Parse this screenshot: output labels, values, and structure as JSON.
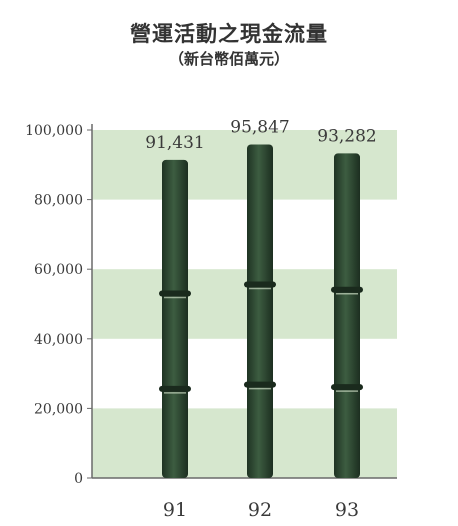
{
  "title": "營運活動之現金流量",
  "subtitle": "（新台幣佰萬元）",
  "colors": {
    "band": "#cfe3c6",
    "bamboo": "#2f4a33",
    "axis": "#6a6a6a",
    "text": "#3a3a3a"
  },
  "chart_data": {
    "type": "bar",
    "categories": [
      "91",
      "92",
      "93"
    ],
    "values": [
      91431,
      95847,
      93282
    ],
    "value_labels": [
      "91,431",
      "95,847",
      "93,282"
    ],
    "ylim": [
      0,
      100000
    ],
    "ytick_values": [
      0,
      20000,
      40000,
      60000,
      80000,
      100000
    ],
    "ytick_labels": [
      "0",
      "20,000",
      "40,000",
      "60,000",
      "80,000",
      "100,000"
    ],
    "grid": "alternating horizontal bands",
    "xlabel": "",
    "ylabel": ""
  }
}
